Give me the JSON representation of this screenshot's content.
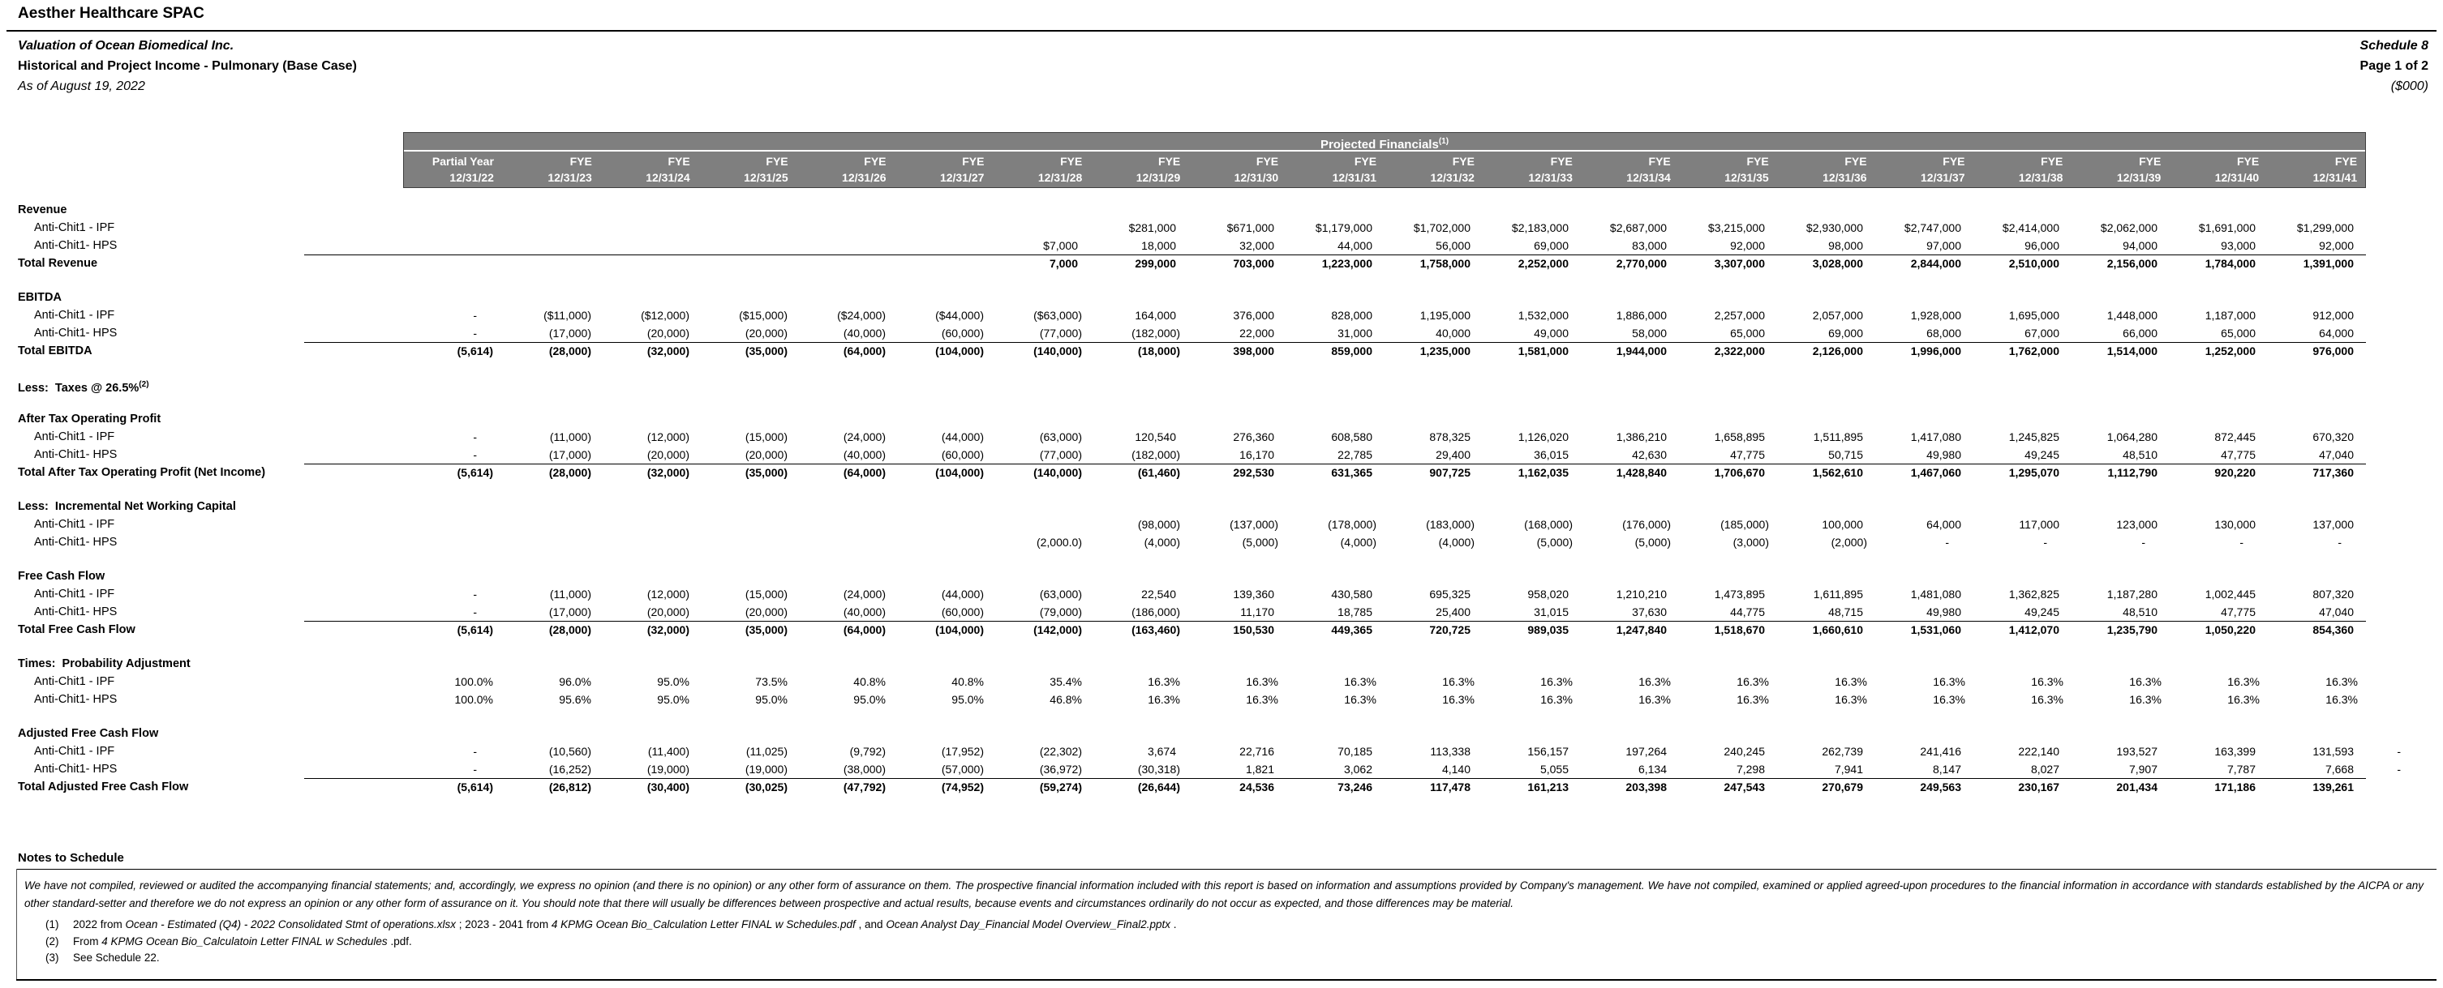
{
  "header": {
    "company": "Aesther Healthcare SPAC",
    "subject": "Valuation of Ocean Biomedical Inc.",
    "statement": "Historical and Project Income - Pulmonary (Base Case)",
    "as_of": "As of August 19, 2022",
    "schedule": "Schedule 8",
    "page": "Page 1 of 2",
    "units": "($000)"
  },
  "table": {
    "band_title": "Projected Financials",
    "band_sup": "(1)",
    "columns": [
      {
        "line1": "Partial Year",
        "line2": "12/31/22"
      },
      {
        "line1": "FYE",
        "line2": "12/31/23"
      },
      {
        "line1": "FYE",
        "line2": "12/31/24"
      },
      {
        "line1": "FYE",
        "line2": "12/31/25"
      },
      {
        "line1": "FYE",
        "line2": "12/31/26"
      },
      {
        "line1": "FYE",
        "line2": "12/31/27"
      },
      {
        "line1": "FYE",
        "line2": "12/31/28"
      },
      {
        "line1": "FYE",
        "line2": "12/31/29"
      },
      {
        "line1": "FYE",
        "line2": "12/31/30"
      },
      {
        "line1": "FYE",
        "line2": "12/31/31"
      },
      {
        "line1": "FYE",
        "line2": "12/31/32"
      },
      {
        "line1": "FYE",
        "line2": "12/31/33"
      },
      {
        "line1": "FYE",
        "line2": "12/31/34"
      },
      {
        "line1": "FYE",
        "line2": "12/31/35"
      },
      {
        "line1": "FYE",
        "line2": "12/31/36"
      },
      {
        "line1": "FYE",
        "line2": "12/31/37"
      },
      {
        "line1": "FYE",
        "line2": "12/31/38"
      },
      {
        "line1": "FYE",
        "line2": "12/31/39"
      },
      {
        "line1": "FYE",
        "line2": "12/31/40"
      },
      {
        "line1": "FYE",
        "line2": "12/31/41"
      }
    ],
    "rows": [
      {
        "type": "section",
        "name": "row-revenue-header",
        "label": "Revenue"
      },
      {
        "type": "data",
        "name": "row-revenue-ipf",
        "label": "Anti-Chit1 - IPF",
        "values": [
          "",
          "",
          "",
          "",
          "",
          "",
          "",
          "$281,000",
          "$671,000",
          "$1,179,000",
          "$1,702,000",
          "$2,183,000",
          "$2,687,000",
          "$3,215,000",
          "$2,930,000",
          "$2,747,000",
          "$2,414,000",
          "$2,062,000",
          "$1,691,000",
          "$1,299,000"
        ]
      },
      {
        "type": "data",
        "name": "row-revenue-hps",
        "label": "Anti-Chit1- HPS",
        "values": [
          "",
          "",
          "",
          "",
          "",
          "",
          "$7,000",
          "18,000",
          "32,000",
          "44,000",
          "56,000",
          "69,000",
          "83,000",
          "92,000",
          "98,000",
          "97,000",
          "96,000",
          "94,000",
          "93,000",
          "92,000"
        ]
      },
      {
        "type": "total",
        "name": "row-total-revenue",
        "label": "Total Revenue",
        "values": [
          "",
          "",
          "",
          "",
          "",
          "",
          "7,000",
          "299,000",
          "703,000",
          "1,223,000",
          "1,758,000",
          "2,252,000",
          "2,770,000",
          "3,307,000",
          "3,028,000",
          "2,844,000",
          "2,510,000",
          "2,156,000",
          "1,784,000",
          "1,391,000"
        ]
      },
      {
        "type": "spacer"
      },
      {
        "type": "section",
        "name": "row-ebitda-header",
        "label": "EBITDA"
      },
      {
        "type": "data",
        "name": "row-ebitda-ipf",
        "label": "Anti-Chit1 - IPF",
        "values": [
          "-",
          "($11,000)",
          "($12,000)",
          "($15,000)",
          "($24,000)",
          "($44,000)",
          "($63,000)",
          "164,000",
          "376,000",
          "828,000",
          "1,195,000",
          "1,532,000",
          "1,886,000",
          "2,257,000",
          "2,057,000",
          "1,928,000",
          "1,695,000",
          "1,448,000",
          "1,187,000",
          "912,000"
        ]
      },
      {
        "type": "data",
        "name": "row-ebitda-hps",
        "label": "Anti-Chit1- HPS",
        "values": [
          "-",
          "(17,000)",
          "(20,000)",
          "(20,000)",
          "(40,000)",
          "(60,000)",
          "(77,000)",
          "(182,000)",
          "22,000",
          "31,000",
          "40,000",
          "49,000",
          "58,000",
          "65,000",
          "69,000",
          "68,000",
          "67,000",
          "66,000",
          "65,000",
          "64,000"
        ]
      },
      {
        "type": "total",
        "name": "row-total-ebitda",
        "label": "Total EBITDA",
        "values": [
          "(5,614)",
          "(28,000)",
          "(32,000)",
          "(35,000)",
          "(64,000)",
          "(104,000)",
          "(140,000)",
          "(18,000)",
          "398,000",
          "859,000",
          "1,235,000",
          "1,581,000",
          "1,944,000",
          "2,322,000",
          "2,126,000",
          "1,996,000",
          "1,762,000",
          "1,514,000",
          "1,252,000",
          "976,000"
        ]
      },
      {
        "type": "spacer"
      },
      {
        "type": "section",
        "name": "row-less-taxes",
        "label": "Less:  Taxes @ 26.5%",
        "sup": "(2)"
      },
      {
        "type": "spacer"
      },
      {
        "type": "section",
        "name": "row-atop-header",
        "label": "After Tax Operating Profit"
      },
      {
        "type": "data",
        "name": "row-atop-ipf",
        "label": "Anti-Chit1 - IPF",
        "values": [
          "-",
          "(11,000)",
          "(12,000)",
          "(15,000)",
          "(24,000)",
          "(44,000)",
          "(63,000)",
          "120,540",
          "276,360",
          "608,580",
          "878,325",
          "1,126,020",
          "1,386,210",
          "1,658,895",
          "1,511,895",
          "1,417,080",
          "1,245,825",
          "1,064,280",
          "872,445",
          "670,320"
        ]
      },
      {
        "type": "data",
        "name": "row-atop-hps",
        "label": "Anti-Chit1- HPS",
        "values": [
          "-",
          "(17,000)",
          "(20,000)",
          "(20,000)",
          "(40,000)",
          "(60,000)",
          "(77,000)",
          "(182,000)",
          "16,170",
          "22,785",
          "29,400",
          "36,015",
          "42,630",
          "47,775",
          "50,715",
          "49,980",
          "49,245",
          "48,510",
          "47,775",
          "47,040"
        ]
      },
      {
        "type": "total",
        "name": "row-total-atop",
        "label": "Total After Tax Operating Profit (Net Income)",
        "values": [
          "(5,614)",
          "(28,000)",
          "(32,000)",
          "(35,000)",
          "(64,000)",
          "(104,000)",
          "(140,000)",
          "(61,460)",
          "292,530",
          "631,365",
          "907,725",
          "1,162,035",
          "1,428,840",
          "1,706,670",
          "1,562,610",
          "1,467,060",
          "1,295,070",
          "1,112,790",
          "920,220",
          "717,360"
        ]
      },
      {
        "type": "spacer"
      },
      {
        "type": "section",
        "name": "row-nwc-header",
        "label": "Less:  Incremental Net Working Capital"
      },
      {
        "type": "data",
        "name": "row-nwc-ipf",
        "label": "Anti-Chit1 - IPF",
        "values": [
          "",
          "",
          "",
          "",
          "",
          "",
          "",
          "(98,000)",
          "(137,000)",
          "(178,000)",
          "(183,000)",
          "(168,000)",
          "(176,000)",
          "(185,000)",
          "100,000",
          "64,000",
          "117,000",
          "123,000",
          "130,000",
          "137,000"
        ]
      },
      {
        "type": "data",
        "name": "row-nwc-hps",
        "label": "Anti-Chit1- HPS",
        "values": [
          "",
          "",
          "",
          "",
          "",
          "",
          "(2,000.0)",
          "(4,000)",
          "(5,000)",
          "(4,000)",
          "(4,000)",
          "(5,000)",
          "(5,000)",
          "(3,000)",
          "(2,000)",
          "-",
          "-",
          "-",
          "-",
          "-"
        ]
      },
      {
        "type": "spacer"
      },
      {
        "type": "section",
        "name": "row-fcf-header",
        "label": "Free Cash Flow"
      },
      {
        "type": "data",
        "name": "row-fcf-ipf",
        "label": "Anti-Chit1 - IPF",
        "values": [
          "-",
          "(11,000)",
          "(12,000)",
          "(15,000)",
          "(24,000)",
          "(44,000)",
          "(63,000)",
          "22,540",
          "139,360",
          "430,580",
          "695,325",
          "958,020",
          "1,210,210",
          "1,473,895",
          "1,611,895",
          "1,481,080",
          "1,362,825",
          "1,187,280",
          "1,002,445",
          "807,320"
        ]
      },
      {
        "type": "data",
        "name": "row-fcf-hps",
        "label": "Anti-Chit1- HPS",
        "values": [
          "-",
          "(17,000)",
          "(20,000)",
          "(20,000)",
          "(40,000)",
          "(60,000)",
          "(79,000)",
          "(186,000)",
          "11,170",
          "18,785",
          "25,400",
          "31,015",
          "37,630",
          "44,775",
          "48,715",
          "49,980",
          "49,245",
          "48,510",
          "47,775",
          "47,040"
        ]
      },
      {
        "type": "total",
        "name": "row-total-fcf",
        "label": "Total Free Cash Flow",
        "values": [
          "(5,614)",
          "(28,000)",
          "(32,000)",
          "(35,000)",
          "(64,000)",
          "(104,000)",
          "(142,000)",
          "(163,460)",
          "150,530",
          "449,365",
          "720,725",
          "989,035",
          "1,247,840",
          "1,518,670",
          "1,660,610",
          "1,531,060",
          "1,412,070",
          "1,235,790",
          "1,050,220",
          "854,360"
        ]
      },
      {
        "type": "spacer"
      },
      {
        "type": "section",
        "name": "row-prob-header",
        "label": "Times:  Probability Adjustment"
      },
      {
        "type": "data",
        "name": "row-prob-ipf",
        "label": "Anti-Chit1 - IPF",
        "values": [
          "100.0%",
          "96.0%",
          "95.0%",
          "73.5%",
          "40.8%",
          "40.8%",
          "35.4%",
          "16.3%",
          "16.3%",
          "16.3%",
          "16.3%",
          "16.3%",
          "16.3%",
          "16.3%",
          "16.3%",
          "16.3%",
          "16.3%",
          "16.3%",
          "16.3%",
          "16.3%"
        ]
      },
      {
        "type": "data",
        "name": "row-prob-hps",
        "label": "Anti-Chit1- HPS",
        "values": [
          "100.0%",
          "95.6%",
          "95.0%",
          "95.0%",
          "95.0%",
          "95.0%",
          "46.8%",
          "16.3%",
          "16.3%",
          "16.3%",
          "16.3%",
          "16.3%",
          "16.3%",
          "16.3%",
          "16.3%",
          "16.3%",
          "16.3%",
          "16.3%",
          "16.3%",
          "16.3%"
        ]
      },
      {
        "type": "spacer"
      },
      {
        "type": "section",
        "name": "row-adjfcf-header",
        "label": "Adjusted Free Cash Flow"
      },
      {
        "type": "data",
        "name": "row-adjfcf-ipf",
        "label": "Anti-Chit1 - IPF",
        "trailing": "-",
        "values": [
          "-",
          "(10,560)",
          "(11,400)",
          "(11,025)",
          "(9,792)",
          "(17,952)",
          "(22,302)",
          "3,674",
          "22,716",
          "70,185",
          "113,338",
          "156,157",
          "197,264",
          "240,245",
          "262,739",
          "241,416",
          "222,140",
          "193,527",
          "163,399",
          "131,593"
        ]
      },
      {
        "type": "data",
        "name": "row-adjfcf-hps",
        "label": "Anti-Chit1- HPS",
        "trailing": "-",
        "values": [
          "-",
          "(16,252)",
          "(19,000)",
          "(19,000)",
          "(38,000)",
          "(57,000)",
          "(36,972)",
          "(30,318)",
          "1,821",
          "3,062",
          "4,140",
          "5,055",
          "6,134",
          "7,298",
          "7,941",
          "8,147",
          "8,027",
          "7,907",
          "7,787",
          "7,668"
        ]
      },
      {
        "type": "total",
        "name": "row-total-adjfcf",
        "label": "Total Adjusted Free Cash Flow",
        "values": [
          "(5,614)",
          "(26,812)",
          "(30,400)",
          "(30,025)",
          "(47,792)",
          "(74,952)",
          "(59,274)",
          "(26,644)",
          "24,536",
          "73,246",
          "117,478",
          "161,213",
          "203,398",
          "247,543",
          "270,679",
          "249,563",
          "230,167",
          "201,434",
          "171,186",
          "139,261"
        ]
      }
    ]
  },
  "notes": {
    "title": "Notes to Schedule",
    "disclaimer": "We have not compiled, reviewed or audited the accompanying financial statements; and, accordingly, we express no opinion (and there is no opinion) or any other form of assurance on them.  The prospective financial information included with this report is based on information and assumptions provided by Company's management.  We have not compiled, examined or applied agreed-upon procedures to the financial information in accordance with standards established by the AICPA or any other standard-setter and therefore we do not express an opinion or any other form of assurance on it.  You should note that there will usually be differences between prospective and actual results, because events and circumstances ordinarily do not occur as expected, and those differences may be material.",
    "footnotes": [
      {
        "num": "(1)",
        "segments": [
          {
            "t": "2022 from ",
            "i": false
          },
          {
            "t": "Ocean - Estimated (Q4) - 2022 Consolidated Stmt of operations.xlsx",
            "i": true
          },
          {
            "t": " ; 2023 - 2041 from ",
            "i": false
          },
          {
            "t": "4 KPMG Ocean Bio_Calculation Letter FINAL w Schedules.pdf",
            "i": true
          },
          {
            "t": " , and ",
            "i": false
          },
          {
            "t": "Ocean Analyst Day_Financial Model Overview_Final2.pptx",
            "i": true
          },
          {
            "t": " .",
            "i": false
          }
        ]
      },
      {
        "num": "(2)",
        "segments": [
          {
            "t": "From ",
            "i": false
          },
          {
            "t": "4 KPMG Ocean Bio_Calculatoin Letter FINAL w Schedules",
            "i": true
          },
          {
            "t": " .pdf.",
            "i": false
          }
        ]
      },
      {
        "num": "(3)",
        "segments": [
          {
            "t": "See Schedule 22.",
            "i": false
          }
        ]
      }
    ]
  }
}
